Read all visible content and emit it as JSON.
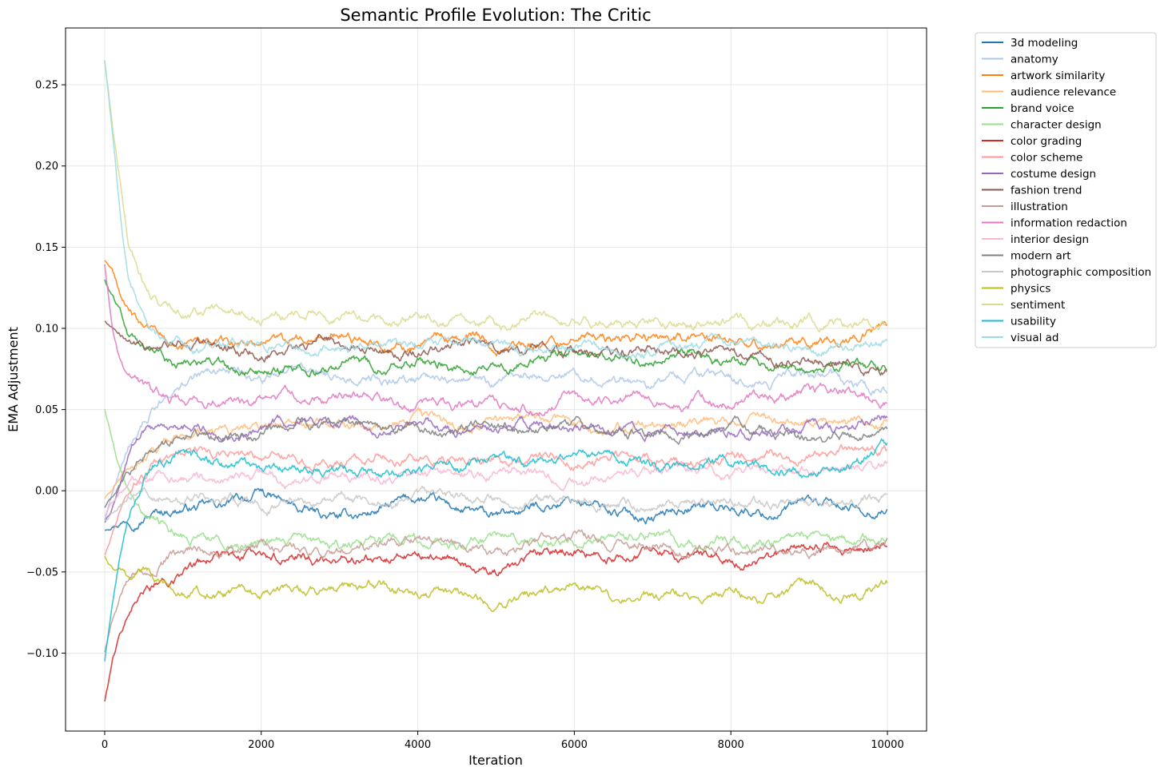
{
  "chart_data": {
    "type": "line",
    "title": "Semantic Profile Evolution: The Critic",
    "xlabel": "Iteration",
    "ylabel": "EMA Adjustment",
    "xlim": [
      -500,
      10500
    ],
    "ylim": [
      -0.148,
      0.285
    ],
    "xticks": [
      0,
      2000,
      4000,
      6000,
      8000,
      10000
    ],
    "xtick_labels": [
      "0",
      "2000",
      "4000",
      "6000",
      "8000",
      "10000"
    ],
    "yticks": [
      -0.1,
      -0.05,
      0.0,
      0.05,
      0.1,
      0.15,
      0.2,
      0.25
    ],
    "ytick_labels": [
      "−0.10",
      "−0.05",
      "0.00",
      "0.05",
      "0.10",
      "0.15",
      "0.20",
      "0.25"
    ],
    "grid": true,
    "legend": {
      "placement": "outside-upper-right"
    },
    "x": [
      0,
      100,
      200,
      300,
      500,
      700,
      1000,
      1500,
      2000,
      2500,
      3000,
      3500,
      4000,
      4500,
      5000,
      5500,
      6000,
      6500,
      7000,
      7500,
      8000,
      8500,
      9000,
      9500,
      10000
    ],
    "series": [
      {
        "name": "3d modeling",
        "color": "#1f77b4",
        "values": [
          -0.024,
          -0.02,
          -0.018,
          -0.016,
          -0.014,
          -0.012,
          -0.01,
          -0.01,
          -0.002,
          -0.013,
          -0.018,
          -0.012,
          -0.005,
          -0.012,
          -0.018,
          -0.01,
          -0.005,
          -0.013,
          -0.016,
          -0.008,
          -0.01,
          -0.014,
          -0.008,
          -0.012,
          -0.01
        ]
      },
      {
        "name": "anatomy",
        "color": "#aec7e8",
        "values": [
          -0.018,
          0.0,
          0.015,
          0.03,
          0.045,
          0.055,
          0.065,
          0.075,
          0.07,
          0.076,
          0.07,
          0.068,
          0.068,
          0.072,
          0.066,
          0.07,
          0.074,
          0.07,
          0.066,
          0.072,
          0.07,
          0.066,
          0.07,
          0.064,
          0.06
        ]
      },
      {
        "name": "artwork similarity",
        "color": "#ff7f0e",
        "values": [
          0.142,
          0.135,
          0.12,
          0.11,
          0.1,
          0.095,
          0.09,
          0.088,
          0.092,
          0.09,
          0.095,
          0.092,
          0.09,
          0.094,
          0.092,
          0.09,
          0.096,
          0.092,
          0.094,
          0.092,
          0.096,
          0.09,
          0.09,
          0.092,
          0.1
        ]
      },
      {
        "name": "audience relevance",
        "color": "#ffbb78",
        "values": [
          -0.005,
          0.0,
          0.006,
          0.012,
          0.02,
          0.025,
          0.03,
          0.035,
          0.038,
          0.04,
          0.042,
          0.04,
          0.045,
          0.038,
          0.042,
          0.044,
          0.04,
          0.038,
          0.04,
          0.042,
          0.04,
          0.044,
          0.042,
          0.04,
          0.045
        ]
      },
      {
        "name": "brand voice",
        "color": "#2ca02c",
        "values": [
          0.13,
          0.12,
          0.11,
          0.095,
          0.085,
          0.08,
          0.078,
          0.075,
          0.072,
          0.075,
          0.078,
          0.076,
          0.08,
          0.076,
          0.08,
          0.082,
          0.085,
          0.082,
          0.08,
          0.084,
          0.08,
          0.076,
          0.074,
          0.078,
          0.074
        ]
      },
      {
        "name": "character design",
        "color": "#98df8a",
        "values": [
          0.05,
          0.03,
          0.012,
          0.0,
          -0.01,
          -0.02,
          -0.028,
          -0.03,
          -0.032,
          -0.03,
          -0.035,
          -0.032,
          -0.03,
          -0.033,
          -0.028,
          -0.032,
          -0.03,
          -0.03,
          -0.028,
          -0.032,
          -0.03,
          -0.034,
          -0.03,
          -0.032,
          -0.03
        ]
      },
      {
        "name": "color grading",
        "color": "#d62728",
        "values": [
          -0.13,
          -0.105,
          -0.09,
          -0.078,
          -0.065,
          -0.058,
          -0.05,
          -0.042,
          -0.04,
          -0.042,
          -0.045,
          -0.042,
          -0.04,
          -0.045,
          -0.052,
          -0.04,
          -0.035,
          -0.04,
          -0.036,
          -0.04,
          -0.04,
          -0.042,
          -0.038,
          -0.036,
          -0.032
        ]
      },
      {
        "name": "color scheme",
        "color": "#ff9896",
        "values": [
          -0.04,
          -0.025,
          -0.012,
          0.0,
          0.01,
          0.018,
          0.022,
          0.02,
          0.018,
          0.02,
          0.018,
          0.022,
          0.02,
          0.018,
          0.022,
          0.02,
          0.018,
          0.022,
          0.02,
          0.018,
          0.02,
          0.022,
          0.02,
          0.025,
          0.025
        ]
      },
      {
        "name": "costume design",
        "color": "#9467bd",
        "values": [
          -0.02,
          -0.01,
          0.005,
          0.02,
          0.035,
          0.04,
          0.038,
          0.035,
          0.038,
          0.042,
          0.04,
          0.038,
          0.045,
          0.038,
          0.04,
          0.042,
          0.04,
          0.038,
          0.036,
          0.04,
          0.038,
          0.034,
          0.038,
          0.04,
          0.048
        ]
      },
      {
        "name": "fashion trend",
        "color": "#8c564b",
        "values": [
          0.104,
          0.1,
          0.098,
          0.096,
          0.094,
          0.092,
          0.09,
          0.088,
          0.085,
          0.09,
          0.092,
          0.088,
          0.085,
          0.09,
          0.088,
          0.086,
          0.085,
          0.082,
          0.086,
          0.084,
          0.082,
          0.08,
          0.082,
          0.078,
          0.074
        ]
      },
      {
        "name": "illustration",
        "color": "#c49c94",
        "values": [
          -0.1,
          -0.08,
          -0.065,
          -0.055,
          -0.048,
          -0.042,
          -0.038,
          -0.036,
          -0.034,
          -0.036,
          -0.035,
          -0.033,
          -0.03,
          -0.034,
          -0.036,
          -0.034,
          -0.03,
          -0.034,
          -0.032,
          -0.036,
          -0.034,
          -0.036,
          -0.038,
          -0.036,
          -0.034
        ]
      },
      {
        "name": "information redaction",
        "color": "#e377c2",
        "values": [
          0.14,
          0.1,
          0.08,
          0.068,
          0.062,
          0.058,
          0.055,
          0.054,
          0.055,
          0.058,
          0.056,
          0.054,
          0.055,
          0.052,
          0.055,
          0.052,
          0.056,
          0.054,
          0.058,
          0.056,
          0.054,
          0.056,
          0.058,
          0.062,
          0.055
        ]
      },
      {
        "name": "interior design",
        "color": "#f7b6d2",
        "values": [
          -0.015,
          -0.008,
          -0.002,
          0.004,
          0.01,
          0.012,
          0.01,
          0.008,
          0.008,
          0.005,
          0.01,
          0.008,
          0.01,
          0.012,
          0.01,
          0.008,
          0.006,
          0.01,
          0.012,
          0.014,
          0.01,
          0.016,
          0.012,
          0.014,
          0.016
        ]
      },
      {
        "name": "modern art",
        "color": "#7f7f7f",
        "values": [
          -0.01,
          -0.005,
          0.002,
          0.01,
          0.02,
          0.028,
          0.032,
          0.034,
          0.035,
          0.04,
          0.042,
          0.038,
          0.04,
          0.036,
          0.038,
          0.036,
          0.04,
          0.036,
          0.034,
          0.036,
          0.038,
          0.034,
          0.032,
          0.036,
          0.034
        ]
      },
      {
        "name": "photographic composition",
        "color": "#c7c7c7",
        "values": [
          -0.018,
          -0.012,
          -0.008,
          -0.005,
          -0.004,
          -0.003,
          -0.002,
          -0.004,
          -0.008,
          -0.006,
          -0.004,
          -0.008,
          -0.006,
          -0.004,
          -0.006,
          -0.008,
          -0.004,
          -0.006,
          -0.008,
          -0.004,
          -0.006,
          -0.008,
          -0.01,
          -0.006,
          -0.004
        ]
      },
      {
        "name": "physics",
        "color": "#bcbd22",
        "values": [
          -0.04,
          -0.048,
          -0.052,
          -0.055,
          -0.05,
          -0.055,
          -0.06,
          -0.065,
          -0.066,
          -0.062,
          -0.06,
          -0.058,
          -0.064,
          -0.068,
          -0.07,
          -0.064,
          -0.06,
          -0.066,
          -0.062,
          -0.064,
          -0.064,
          -0.066,
          -0.06,
          -0.062,
          -0.058
        ]
      },
      {
        "name": "sentiment",
        "color": "#dbdb8d",
        "values": [
          0.265,
          0.225,
          0.19,
          0.155,
          0.13,
          0.118,
          0.112,
          0.11,
          0.105,
          0.112,
          0.108,
          0.104,
          0.106,
          0.104,
          0.104,
          0.106,
          0.104,
          0.106,
          0.104,
          0.102,
          0.104,
          0.102,
          0.104,
          0.102,
          0.104
        ]
      },
      {
        "name": "usability",
        "color": "#17becf",
        "values": [
          -0.105,
          -0.07,
          -0.04,
          -0.02,
          0.005,
          0.018,
          0.025,
          0.015,
          0.01,
          0.015,
          0.012,
          0.01,
          0.015,
          0.012,
          0.02,
          0.018,
          0.022,
          0.018,
          0.015,
          0.018,
          0.015,
          0.014,
          0.012,
          0.016,
          0.025
        ]
      },
      {
        "name": "visual ad",
        "color": "#9edae5",
        "values": [
          0.265,
          0.22,
          0.17,
          0.13,
          0.108,
          0.098,
          0.092,
          0.088,
          0.09,
          0.086,
          0.09,
          0.088,
          0.09,
          0.088,
          0.086,
          0.088,
          0.09,
          0.088,
          0.086,
          0.09,
          0.088,
          0.09,
          0.092,
          0.088,
          0.09
        ]
      }
    ]
  }
}
